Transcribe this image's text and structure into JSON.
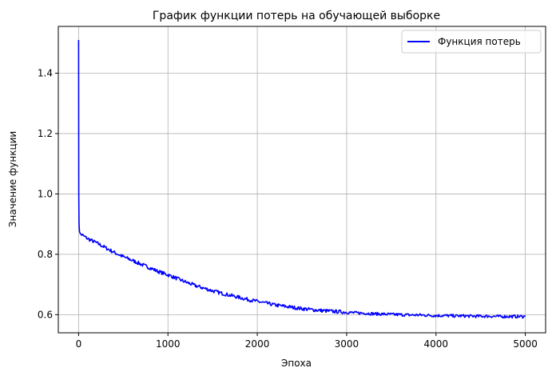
{
  "chart_data": {
    "type": "line",
    "title": "График функции потерь на обучающей выборке",
    "xlabel": "Эпоха",
    "ylabel": "Значение функции",
    "xlim": [
      -227,
      5227
    ],
    "ylim": [
      0.54,
      1.555
    ],
    "xticks": [
      0,
      1000,
      2000,
      3000,
      4000,
      5000
    ],
    "yticks": [
      0.6,
      0.8,
      1.0,
      1.2,
      1.4
    ],
    "xtick_labels": [
      "0",
      "1000",
      "2000",
      "3000",
      "4000",
      "5000"
    ],
    "ytick_labels": [
      "0.6",
      "0.8",
      "1.0",
      "1.2",
      "1.4"
    ],
    "grid": true,
    "legend_position": "top-right",
    "series": [
      {
        "name": "Функция потерь",
        "color": "#0000ff",
        "x": [
          0,
          2,
          5,
          10,
          20,
          50,
          100,
          200,
          300,
          400,
          500,
          600,
          700,
          800,
          900,
          1000,
          1100,
          1200,
          1300,
          1400,
          1500,
          1600,
          1700,
          1800,
          1900,
          2000,
          2100,
          2200,
          2300,
          2400,
          2500,
          2600,
          2700,
          2800,
          2900,
          3000,
          3100,
          3200,
          3300,
          3400,
          3500,
          3600,
          3700,
          3800,
          3900,
          4000,
          4100,
          4200,
          4300,
          4400,
          4500,
          4600,
          4700,
          4800,
          4900,
          5000
        ],
        "y": [
          1.51,
          1.0,
          0.9,
          0.875,
          0.868,
          0.862,
          0.852,
          0.838,
          0.822,
          0.806,
          0.792,
          0.78,
          0.767,
          0.755,
          0.742,
          0.732,
          0.72,
          0.708,
          0.697,
          0.688,
          0.679,
          0.671,
          0.664,
          0.657,
          0.65,
          0.644,
          0.638,
          0.632,
          0.628,
          0.624,
          0.62,
          0.617,
          0.614,
          0.612,
          0.61,
          0.608,
          0.606,
          0.605,
          0.603,
          0.602,
          0.601,
          0.6,
          0.599,
          0.599,
          0.598,
          0.597,
          0.597,
          0.596,
          0.596,
          0.595,
          0.595,
          0.595,
          0.594,
          0.594,
          0.594,
          0.594
        ]
      }
    ]
  }
}
